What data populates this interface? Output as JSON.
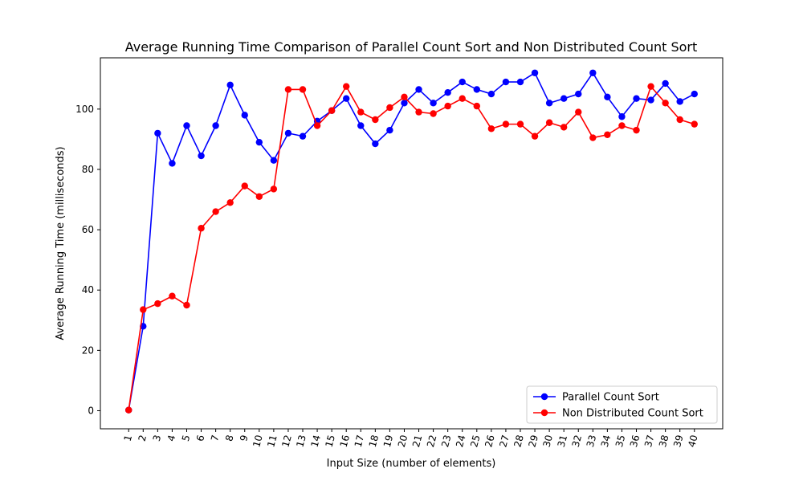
{
  "chart_data": {
    "type": "line",
    "title": "Average Running Time Comparison of Parallel Count Sort and Non Distributed Count Sort",
    "xlabel": "Input Size (number of elements)",
    "ylabel": "Average Running Time (milliseconds)",
    "x": [
      1,
      2,
      3,
      4,
      5,
      6,
      7,
      8,
      9,
      10,
      11,
      12,
      13,
      14,
      15,
      16,
      17,
      18,
      19,
      20,
      21,
      22,
      23,
      24,
      25,
      26,
      27,
      28,
      29,
      30,
      31,
      32,
      33,
      34,
      35,
      36,
      37,
      38,
      39,
      40
    ],
    "xtick_labels": [
      "1",
      "2",
      "3",
      "4",
      "5",
      "6",
      "7",
      "8",
      "9",
      "10",
      "11",
      "12",
      "13",
      "14",
      "15",
      "16",
      "17",
      "18",
      "19",
      "20",
      "21",
      "22",
      "23",
      "24",
      "25",
      "26",
      "27",
      "28",
      "29",
      "30",
      "31",
      "32",
      "33",
      "34",
      "35",
      "36",
      "37",
      "38",
      "39",
      "40"
    ],
    "xtick_rotation_deg": -75,
    "xlim": [
      -0.95,
      41.95
    ],
    "ylim": [
      -6,
      117
    ],
    "yticks": [
      0,
      20,
      40,
      60,
      80,
      100
    ],
    "ytick_labels": [
      "0",
      "20",
      "40",
      "60",
      "80",
      "100"
    ],
    "grid": false,
    "legend_position": "lower-right",
    "series": [
      {
        "name": "Parallel Count Sort",
        "color": "#0000ff",
        "marker": "circle",
        "values": [
          0.2,
          28.0,
          92.0,
          82.0,
          94.5,
          84.5,
          94.5,
          108.0,
          98.0,
          89.0,
          83.0,
          92.0,
          91.0,
          96.0,
          99.5,
          103.5,
          94.5,
          88.5,
          93.0,
          102.0,
          106.5,
          102.0,
          105.5,
          109.0,
          106.5,
          105.0,
          109.0,
          109.0,
          112.0,
          102.0,
          103.5,
          105.0,
          112.0,
          104.0,
          97.5,
          103.5,
          103.0,
          108.5,
          102.5,
          105.0
        ]
      },
      {
        "name": "Non Distributed Count Sort",
        "color": "#ff0000",
        "marker": "circle",
        "values": [
          0.2,
          33.5,
          35.5,
          38.0,
          35.0,
          60.5,
          66.0,
          69.0,
          74.5,
          71.0,
          73.5,
          106.5,
          106.5,
          94.5,
          99.5,
          107.5,
          99.0,
          96.5,
          100.5,
          104.0,
          99.0,
          98.5,
          101.0,
          103.5,
          101.0,
          93.5,
          95.0,
          95.0,
          91.0,
          95.5,
          94.0,
          99.0,
          90.5,
          91.5,
          94.5,
          93.0,
          107.5,
          102.0,
          96.5,
          95.0
        ]
      }
    ]
  }
}
